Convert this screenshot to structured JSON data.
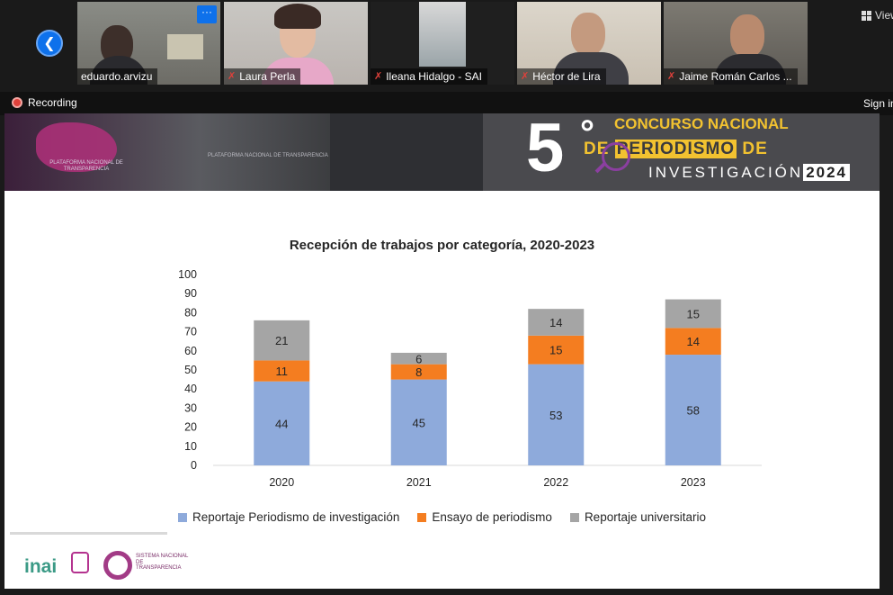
{
  "participants": [
    {
      "name": "eduardo.arvizu",
      "muted": false
    },
    {
      "name": "Laura Perla",
      "muted": true
    },
    {
      "name": "Ileana Hidalgo - SAI",
      "muted": true
    },
    {
      "name": "Héctor de Lira",
      "muted": true
    },
    {
      "name": "Jaime Román Carlos ...",
      "muted": true
    }
  ],
  "view_label": "View",
  "recording_label": "Recording",
  "sign_in_label": "Sign in",
  "banner": {
    "number": "5",
    "line1": "CONCURSO NACIONAL",
    "line2_pre": "DE ",
    "line2_highlight": "PERIODISMO",
    "line2_post": " DE",
    "line3": "INVESTIGACIÓN",
    "year": "2024",
    "platform": "PLATAFORMA NACIONAL DE TRANSPARENCIA"
  },
  "logos": {
    "inai": "inai",
    "snt": "SISTEMA NACIONAL DE TRANSPARENCIA"
  },
  "chart_data": {
    "type": "bar",
    "stacked": true,
    "title": "Recepción de trabajos por categoría, 2020-2023",
    "categories": [
      "2020",
      "2021",
      "2022",
      "2023"
    ],
    "ylim": [
      0,
      100
    ],
    "yticks": [
      0,
      10,
      20,
      30,
      40,
      50,
      60,
      70,
      80,
      90,
      100
    ],
    "grid": false,
    "legend_position": "bottom",
    "series": [
      {
        "name": "Reportaje Periodismo de investigación",
        "color": "#8eaadb",
        "values": [
          44,
          45,
          53,
          58
        ]
      },
      {
        "name": "Ensayo de periodismo",
        "color": "#f47d20",
        "values": [
          11,
          8,
          15,
          14
        ]
      },
      {
        "name": "Reportaje universitario",
        "color": "#a5a5a5",
        "values": [
          21,
          6,
          14,
          15
        ]
      }
    ]
  }
}
